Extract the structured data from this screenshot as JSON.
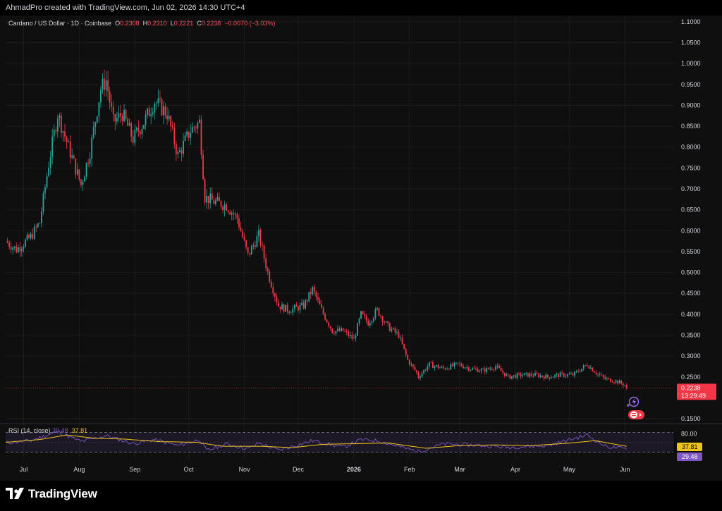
{
  "header": {
    "caption": "AhmadPro created with TradingView.com, Jun 02, 2026 14:30 UTC+4"
  },
  "legend": {
    "symbol": "Cardano / US Dollar · 1D · Coinbase",
    "o_label": "O",
    "o_value": "0.2308",
    "h_label": "H",
    "h_value": "0.2310",
    "l_label": "L",
    "l_value": "0.2221",
    "c_label": "C",
    "c_value": "0.2238",
    "change": "−0.0070 (−3.03%)"
  },
  "price_tag": {
    "price": "0.2238",
    "countdown": "13:29:49",
    "color": "#f23645"
  },
  "rsi": {
    "label": "RSI (14, close)",
    "rsi_value": "29.48",
    "ma_value": "37.81",
    "upper_band_label": "80.00",
    "rsi_color": "#7e57c2",
    "ma_color": "#f0c419"
  },
  "brand": {
    "name": "TradingView"
  },
  "colors": {
    "up": "#26a69a",
    "down": "#f23645",
    "background": "#0f0f0f"
  },
  "chart_data": {
    "type": "candlestick",
    "series_name": "Cardano / US Dollar",
    "y_ticks": [
      "1.1000",
      "1.0500",
      "1.0000",
      "0.9500",
      "0.9000",
      "0.8500",
      "0.8000",
      "0.7500",
      "0.7000",
      "0.6500",
      "0.6000",
      "0.5500",
      "0.5000",
      "0.4500",
      "0.4000",
      "0.3500",
      "0.3000",
      "0.2500",
      "0.1500"
    ],
    "ylim": [
      0.14,
      1.115
    ],
    "x_ticks": [
      {
        "label": "Jul",
        "date": "2025-07-01"
      },
      {
        "label": "Aug",
        "date": "2025-08-01"
      },
      {
        "label": "Sep",
        "date": "2025-09-01"
      },
      {
        "label": "Oct",
        "date": "2025-10-01"
      },
      {
        "label": "Nov",
        "date": "2025-11-01"
      },
      {
        "label": "Dec",
        "date": "2025-12-01"
      },
      {
        "label": "2026",
        "date": "2026-01-01"
      },
      {
        "label": "Feb",
        "date": "2026-02-01"
      },
      {
        "label": "Mar",
        "date": "2026-03-01"
      },
      {
        "label": "Apr",
        "date": "2026-04-01"
      },
      {
        "label": "May",
        "date": "2026-05-01"
      },
      {
        "label": "Jun",
        "date": "2026-06-01"
      }
    ],
    "x_range": [
      "2025-06-21",
      "2026-06-28"
    ],
    "close_path": [
      {
        "date": "2025-06-21",
        "close": 0.575
      },
      {
        "date": "2025-06-27",
        "close": 0.555
      },
      {
        "date": "2025-07-05",
        "close": 0.585
      },
      {
        "date": "2025-07-10",
        "close": 0.62
      },
      {
        "date": "2025-07-15",
        "close": 0.76
      },
      {
        "date": "2025-07-20",
        "close": 0.88
      },
      {
        "date": "2025-07-26",
        "close": 0.8
      },
      {
        "date": "2025-08-02",
        "close": 0.71
      },
      {
        "date": "2025-08-07",
        "close": 0.79
      },
      {
        "date": "2025-08-13",
        "close": 0.94
      },
      {
        "date": "2025-08-16",
        "close": 0.96
      },
      {
        "date": "2025-08-20",
        "close": 0.86
      },
      {
        "date": "2025-08-25",
        "close": 0.88
      },
      {
        "date": "2025-08-31",
        "close": 0.82
      },
      {
        "date": "2025-09-06",
        "close": 0.86
      },
      {
        "date": "2025-09-12",
        "close": 0.91
      },
      {
        "date": "2025-09-19",
        "close": 0.88
      },
      {
        "date": "2025-09-25",
        "close": 0.78
      },
      {
        "date": "2025-10-02",
        "close": 0.84
      },
      {
        "date": "2025-10-07",
        "close": 0.86
      },
      {
        "date": "2025-10-10",
        "close": 0.68
      },
      {
        "date": "2025-10-15",
        "close": 0.67
      },
      {
        "date": "2025-10-22",
        "close": 0.66
      },
      {
        "date": "2025-10-28",
        "close": 0.63
      },
      {
        "date": "2025-11-03",
        "close": 0.54
      },
      {
        "date": "2025-11-09",
        "close": 0.59
      },
      {
        "date": "2025-11-14",
        "close": 0.5
      },
      {
        "date": "2025-11-20",
        "close": 0.42
      },
      {
        "date": "2025-11-26",
        "close": 0.41
      },
      {
        "date": "2025-12-04",
        "close": 0.42
      },
      {
        "date": "2025-12-09",
        "close": 0.46
      },
      {
        "date": "2025-12-14",
        "close": 0.41
      },
      {
        "date": "2025-12-20",
        "close": 0.36
      },
      {
        "date": "2025-12-26",
        "close": 0.36
      },
      {
        "date": "2026-01-01",
        "close": 0.34
      },
      {
        "date": "2026-01-05",
        "close": 0.4
      },
      {
        "date": "2026-01-09",
        "close": 0.38
      },
      {
        "date": "2026-01-14",
        "close": 0.41
      },
      {
        "date": "2026-01-20",
        "close": 0.37
      },
      {
        "date": "2026-01-26",
        "close": 0.35
      },
      {
        "date": "2026-01-31",
        "close": 0.29
      },
      {
        "date": "2026-02-05",
        "close": 0.26
      },
      {
        "date": "2026-02-06",
        "close": 0.25
      },
      {
        "date": "2026-02-12",
        "close": 0.28
      },
      {
        "date": "2026-02-20",
        "close": 0.27
      },
      {
        "date": "2026-02-28",
        "close": 0.28
      },
      {
        "date": "2026-03-07",
        "close": 0.27
      },
      {
        "date": "2026-03-14",
        "close": 0.265
      },
      {
        "date": "2026-03-21",
        "close": 0.275
      },
      {
        "date": "2026-03-28",
        "close": 0.25
      },
      {
        "date": "2026-04-05",
        "close": 0.255
      },
      {
        "date": "2026-04-12",
        "close": 0.255
      },
      {
        "date": "2026-04-19",
        "close": 0.25
      },
      {
        "date": "2026-04-26",
        "close": 0.255
      },
      {
        "date": "2026-05-03",
        "close": 0.255
      },
      {
        "date": "2026-05-08",
        "close": 0.27
      },
      {
        "date": "2026-05-11",
        "close": 0.28
      },
      {
        "date": "2026-05-16",
        "close": 0.26
      },
      {
        "date": "2026-05-21",
        "close": 0.245
      },
      {
        "date": "2026-05-27",
        "close": 0.24
      },
      {
        "date": "2026-06-01",
        "close": 0.231
      },
      {
        "date": "2026-06-02",
        "close": 0.2238
      }
    ],
    "rsi_ylim": [
      0,
      100
    ],
    "rsi_band_upper": 80,
    "rsi_band_lower": 20,
    "rsi_path": [
      {
        "date": "2025-06-21",
        "value": 48
      },
      {
        "date": "2025-07-05",
        "value": 55
      },
      {
        "date": "2025-07-20",
        "value": 82
      },
      {
        "date": "2025-08-02",
        "value": 52
      },
      {
        "date": "2025-08-16",
        "value": 70
      },
      {
        "date": "2025-08-31",
        "value": 46
      },
      {
        "date": "2025-09-12",
        "value": 58
      },
      {
        "date": "2025-09-25",
        "value": 40
      },
      {
        "date": "2025-10-07",
        "value": 58
      },
      {
        "date": "2025-10-11",
        "value": 25
      },
      {
        "date": "2025-10-22",
        "value": 45
      },
      {
        "date": "2025-11-03",
        "value": 30
      },
      {
        "date": "2025-11-09",
        "value": 48
      },
      {
        "date": "2025-11-20",
        "value": 26
      },
      {
        "date": "2025-12-09",
        "value": 55
      },
      {
        "date": "2025-12-26",
        "value": 35
      },
      {
        "date": "2026-01-05",
        "value": 58
      },
      {
        "date": "2026-01-14",
        "value": 55
      },
      {
        "date": "2026-01-31",
        "value": 30
      },
      {
        "date": "2026-02-06",
        "value": 22
      },
      {
        "date": "2026-02-20",
        "value": 45
      },
      {
        "date": "2026-03-07",
        "value": 42
      },
      {
        "date": "2026-03-28",
        "value": 35
      },
      {
        "date": "2026-04-19",
        "value": 40
      },
      {
        "date": "2026-05-11",
        "value": 72
      },
      {
        "date": "2026-05-21",
        "value": 38
      },
      {
        "date": "2026-06-02",
        "value": 29.48
      }
    ],
    "rsi_ma_path": [
      {
        "date": "2025-06-21",
        "value": 50
      },
      {
        "date": "2025-07-10",
        "value": 58
      },
      {
        "date": "2025-07-25",
        "value": 72
      },
      {
        "date": "2025-08-10",
        "value": 62
      },
      {
        "date": "2025-08-25",
        "value": 60
      },
      {
        "date": "2025-09-15",
        "value": 52
      },
      {
        "date": "2025-10-05",
        "value": 50
      },
      {
        "date": "2025-10-20",
        "value": 38
      },
      {
        "date": "2025-11-10",
        "value": 38
      },
      {
        "date": "2025-11-28",
        "value": 34
      },
      {
        "date": "2025-12-15",
        "value": 44
      },
      {
        "date": "2026-01-05",
        "value": 46
      },
      {
        "date": "2026-01-20",
        "value": 48
      },
      {
        "date": "2026-02-10",
        "value": 32
      },
      {
        "date": "2026-03-01",
        "value": 40
      },
      {
        "date": "2026-03-20",
        "value": 42
      },
      {
        "date": "2026-04-10",
        "value": 40
      },
      {
        "date": "2026-04-30",
        "value": 47
      },
      {
        "date": "2026-05-15",
        "value": 55
      },
      {
        "date": "2026-06-02",
        "value": 37.81
      }
    ]
  }
}
